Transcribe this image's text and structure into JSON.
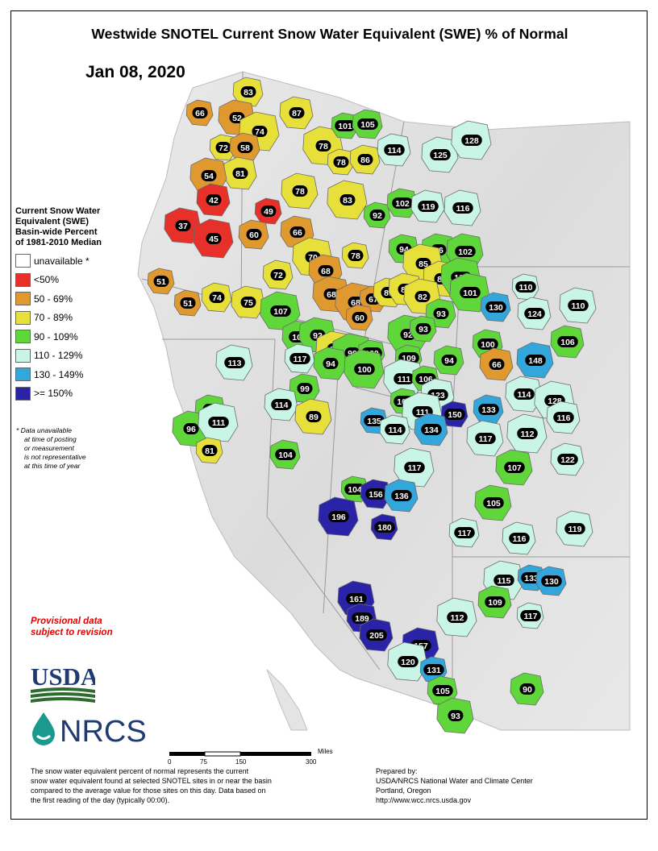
{
  "title": "Westwide SNOTEL Current Snow Water Equivalent (SWE) % of Normal",
  "date": "Jan 08, 2020",
  "legend": {
    "title_lines": [
      "Current Snow Water",
      "Equivalent (SWE)",
      "Basin-wide Percent",
      "of 1981-2010 Median"
    ],
    "items": [
      {
        "label": "unavailable *",
        "color": "#ffffff"
      },
      {
        "label": "<50%",
        "color": "#e8302a"
      },
      {
        "label": "50 - 69%",
        "color": "#e0992f"
      },
      {
        "label": "70 - 89%",
        "color": "#e8e03a"
      },
      {
        "label": "90 - 109%",
        "color": "#5fd63a"
      },
      {
        "label": "110 - 129%",
        "color": "#c8f5e6"
      },
      {
        "label": "130 - 149%",
        "color": "#33a6dc"
      },
      {
        "label": ">= 150%",
        "color": "#2a23a8"
      }
    ]
  },
  "note_lines": [
    "* Data unavailable",
    "at time of posting",
    "or measurement",
    "is not representative",
    "at this time of year"
  ],
  "provisional_lines": [
    "Provisional data",
    "subject to revision"
  ],
  "logos": {
    "usda": "USDA",
    "nrcs": "NRCS"
  },
  "scale": {
    "unit": "Miles",
    "ticks": [
      "0",
      "75",
      "150",
      "300"
    ]
  },
  "footer_left_lines": [
    "The snow water equivalent percent of normal represents the current",
    "snow water equivalent found at selected SNOTEL sites in or near the basin",
    "compared to the average value for those sites on this day. Data based on",
    "the first reading of the day (typically 00:00)."
  ],
  "footer_right_lines": [
    "Prepared by:",
    "USDA/NRCS National Water and Climate Center",
    "Portland, Oregon",
    "http://www.wcc.nrcs.usda.gov"
  ],
  "basins": [
    {
      "value": "66",
      "category": 2
    },
    {
      "value": "83",
      "category": 3
    },
    {
      "value": "87",
      "category": 3
    },
    {
      "value": "52",
      "category": 2
    },
    {
      "value": "74",
      "category": 3
    },
    {
      "value": "72",
      "category": 3
    },
    {
      "value": "58",
      "category": 2
    },
    {
      "value": "81",
      "category": 3
    },
    {
      "value": "54",
      "category": 2
    },
    {
      "value": "78",
      "category": 3
    },
    {
      "value": "101",
      "category": 4
    },
    {
      "value": "105",
      "category": 4
    },
    {
      "value": "114",
      "category": 5
    },
    {
      "value": "125",
      "category": 5
    },
    {
      "value": "128",
      "category": 5
    },
    {
      "value": "78",
      "category": 3
    },
    {
      "value": "86",
      "category": 3
    },
    {
      "value": "42",
      "category": 1
    },
    {
      "value": "37",
      "category": 1
    },
    {
      "value": "45",
      "category": 1
    },
    {
      "value": "49",
      "category": 1
    },
    {
      "value": "60",
      "category": 2
    },
    {
      "value": "66",
      "category": 2
    },
    {
      "value": "78",
      "category": 3
    },
    {
      "value": "83",
      "category": 3
    },
    {
      "value": "92",
      "category": 4
    },
    {
      "value": "102",
      "category": 4
    },
    {
      "value": "119",
      "category": 5
    },
    {
      "value": "116",
      "category": 5
    },
    {
      "value": "70",
      "category": 3
    },
    {
      "value": "78",
      "category": 3
    },
    {
      "value": "94",
      "category": 4
    },
    {
      "value": "96",
      "category": 4
    },
    {
      "value": "102",
      "category": 4
    },
    {
      "value": "85",
      "category": 3
    },
    {
      "value": "51",
      "category": 2
    },
    {
      "value": "72",
      "category": 3
    },
    {
      "value": "68",
      "category": 2
    },
    {
      "value": "82",
      "category": 3
    },
    {
      "value": "103",
      "category": 4
    },
    {
      "value": "51",
      "category": 2
    },
    {
      "value": "74",
      "category": 3
    },
    {
      "value": "75",
      "category": 3
    },
    {
      "value": "68",
      "category": 2
    },
    {
      "value": "68",
      "category": 2
    },
    {
      "value": "67",
      "category": 2
    },
    {
      "value": "89",
      "category": 3
    },
    {
      "value": "89",
      "category": 3
    },
    {
      "value": "82",
      "category": 3
    },
    {
      "value": "101",
      "category": 4
    },
    {
      "value": "110",
      "category": 5
    },
    {
      "value": "130",
      "category": 6
    },
    {
      "value": "124",
      "category": 5
    },
    {
      "value": "110",
      "category": 5
    },
    {
      "value": "107",
      "category": 4
    },
    {
      "value": "60",
      "category": 2
    },
    {
      "value": "93",
      "category": 4
    },
    {
      "value": "107",
      "category": 4
    },
    {
      "value": "92",
      "category": 4
    },
    {
      "value": "92",
      "category": 4
    },
    {
      "value": "93",
      "category": 4
    },
    {
      "value": "100",
      "category": 4
    },
    {
      "value": "106",
      "category": 4
    },
    {
      "value": "88",
      "category": 3
    },
    {
      "value": "99",
      "category": 4
    },
    {
      "value": "100",
      "category": 4
    },
    {
      "value": "117",
      "category": 5
    },
    {
      "value": "94",
      "category": 4
    },
    {
      "value": "113",
      "category": 5
    },
    {
      "value": "100",
      "category": 4
    },
    {
      "value": "109",
      "category": 4
    },
    {
      "value": "94",
      "category": 4
    },
    {
      "value": "66",
      "category": 2
    },
    {
      "value": "148",
      "category": 6
    },
    {
      "value": "111",
      "category": 5
    },
    {
      "value": "106",
      "category": 4
    },
    {
      "value": "99",
      "category": 4
    },
    {
      "value": "123",
      "category": 5
    },
    {
      "value": "114",
      "category": 5
    },
    {
      "value": "128",
      "category": 5
    },
    {
      "value": "108",
      "category": 4
    },
    {
      "value": "93",
      "category": 4
    },
    {
      "value": "114",
      "category": 5
    },
    {
      "value": "89",
      "category": 3
    },
    {
      "value": "111",
      "category": 5
    },
    {
      "value": "150",
      "category": 7
    },
    {
      "value": "133",
      "category": 6
    },
    {
      "value": "116",
      "category": 5
    },
    {
      "value": "96",
      "category": 4
    },
    {
      "value": "111",
      "category": 5
    },
    {
      "value": "135",
      "category": 6
    },
    {
      "value": "114",
      "category": 5
    },
    {
      "value": "134",
      "category": 6
    },
    {
      "value": "117",
      "category": 5
    },
    {
      "value": "112",
      "category": 5
    },
    {
      "value": "81",
      "category": 3
    },
    {
      "value": "104",
      "category": 4
    },
    {
      "value": "122",
      "category": 5
    },
    {
      "value": "107",
      "category": 4
    },
    {
      "value": "117",
      "category": 5
    },
    {
      "value": "104",
      "category": 4
    },
    {
      "value": "156",
      "category": 7
    },
    {
      "value": "136",
      "category": 6
    },
    {
      "value": "105",
      "category": 4
    },
    {
      "value": "196",
      "category": 7
    },
    {
      "value": "180",
      "category": 7
    },
    {
      "value": "117",
      "category": 5
    },
    {
      "value": "116",
      "category": 5
    },
    {
      "value": "119",
      "category": 5
    },
    {
      "value": "115",
      "category": 5
    },
    {
      "value": "133",
      "category": 6
    },
    {
      "value": "130",
      "category": 6
    },
    {
      "value": "109",
      "category": 4
    },
    {
      "value": "161",
      "category": 7
    },
    {
      "value": "112",
      "category": 5
    },
    {
      "value": "117",
      "category": 5
    },
    {
      "value": "189",
      "category": 7
    },
    {
      "value": "205",
      "category": 7
    },
    {
      "value": "157",
      "category": 7
    },
    {
      "value": "120",
      "category": 5
    },
    {
      "value": "131",
      "category": 6
    },
    {
      "value": "105",
      "category": 4
    },
    {
      "value": "90",
      "category": 4
    },
    {
      "value": "93",
      "category": 4
    }
  ]
}
